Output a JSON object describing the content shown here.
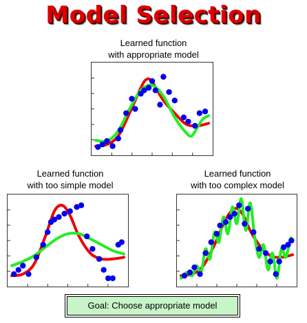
{
  "title": "Model Selection",
  "colors": {
    "title": "#dd0000",
    "points": "#0000ee",
    "truth": "#ee0000",
    "learned": "#22ee22",
    "goal_box": "#c8f5c8"
  },
  "panels": {
    "appropriate": {
      "caption_line1": "Learned function",
      "caption_line2": "with appropriate model",
      "chart_data": {
        "type": "scatter",
        "points": [
          [
            0.02,
            0.05
          ],
          [
            0.06,
            0.08
          ],
          [
            0.1,
            0.12
          ],
          [
            0.15,
            0.06
          ],
          [
            0.2,
            0.15
          ],
          [
            0.22,
            0.25
          ],
          [
            0.27,
            0.45
          ],
          [
            0.32,
            0.62
          ],
          [
            0.35,
            0.5
          ],
          [
            0.4,
            0.68
          ],
          [
            0.43,
            0.72
          ],
          [
            0.47,
            0.75
          ],
          [
            0.5,
            0.83
          ],
          [
            0.53,
            0.72
          ],
          [
            0.57,
            0.55
          ],
          [
            0.6,
            0.88
          ],
          [
            0.65,
            0.7
          ],
          [
            0.7,
            0.6
          ],
          [
            0.78,
            0.4
          ],
          [
            0.82,
            0.35
          ],
          [
            0.88,
            0.3
          ],
          [
            0.92,
            0.45
          ],
          [
            0.97,
            0.47
          ]
        ],
        "truth": [
          [
            0,
            0.06
          ],
          [
            0.1,
            0.08
          ],
          [
            0.2,
            0.18
          ],
          [
            0.3,
            0.45
          ],
          [
            0.4,
            0.75
          ],
          [
            0.45,
            0.85
          ],
          [
            0.5,
            0.82
          ],
          [
            0.6,
            0.6
          ],
          [
            0.7,
            0.45
          ],
          [
            0.8,
            0.32
          ],
          [
            0.9,
            0.3
          ],
          [
            1,
            0.33
          ]
        ],
        "learned": [
          [
            0,
            0.13
          ],
          [
            0.1,
            0.12
          ],
          [
            0.2,
            0.24
          ],
          [
            0.3,
            0.5
          ],
          [
            0.4,
            0.72
          ],
          [
            0.5,
            0.78
          ],
          [
            0.6,
            0.65
          ],
          [
            0.7,
            0.4
          ],
          [
            0.8,
            0.22
          ],
          [
            0.85,
            0.18
          ],
          [
            0.9,
            0.28
          ],
          [
            0.95,
            0.38
          ],
          [
            1,
            0.42
          ]
        ]
      }
    },
    "too_simple": {
      "caption_line1": "Learned function",
      "caption_line2": "with too simple model",
      "chart_data": {
        "type": "scatter",
        "points": [
          [
            0.02,
            0.1
          ],
          [
            0.06,
            0.15
          ],
          [
            0.1,
            0.2
          ],
          [
            0.15,
            0.1
          ],
          [
            0.22,
            0.3
          ],
          [
            0.28,
            0.45
          ],
          [
            0.32,
            0.6
          ],
          [
            0.35,
            0.72
          ],
          [
            0.38,
            0.75
          ],
          [
            0.42,
            0.78
          ],
          [
            0.47,
            0.82
          ],
          [
            0.52,
            0.85
          ],
          [
            0.58,
            0.9
          ],
          [
            0.62,
            0.92
          ],
          [
            0.67,
            0.55
          ],
          [
            0.72,
            0.4
          ],
          [
            0.78,
            0.28
          ],
          [
            0.82,
            0.15
          ],
          [
            0.86,
            0.05
          ],
          [
            0.9,
            0.05
          ],
          [
            0.95,
            0.45
          ],
          [
            0.98,
            0.48
          ]
        ],
        "truth": [
          [
            0,
            0.08
          ],
          [
            0.1,
            0.1
          ],
          [
            0.2,
            0.22
          ],
          [
            0.3,
            0.55
          ],
          [
            0.38,
            0.85
          ],
          [
            0.45,
            0.92
          ],
          [
            0.52,
            0.8
          ],
          [
            0.6,
            0.55
          ],
          [
            0.7,
            0.35
          ],
          [
            0.8,
            0.28
          ],
          [
            0.9,
            0.28
          ],
          [
            1,
            0.3
          ]
        ],
        "learned": [
          [
            0,
            0.2
          ],
          [
            0.1,
            0.25
          ],
          [
            0.2,
            0.32
          ],
          [
            0.3,
            0.42
          ],
          [
            0.4,
            0.52
          ],
          [
            0.5,
            0.58
          ],
          [
            0.6,
            0.58
          ],
          [
            0.7,
            0.52
          ],
          [
            0.8,
            0.45
          ],
          [
            0.9,
            0.38
          ],
          [
            1,
            0.34
          ]
        ]
      }
    },
    "too_complex": {
      "caption_line1": "Learned function",
      "caption_line2": "with too complex model",
      "chart_data": {
        "type": "scatter",
        "points": [
          [
            0.03,
            0.08
          ],
          [
            0.08,
            0.12
          ],
          [
            0.12,
            0.18
          ],
          [
            0.17,
            0.1
          ],
          [
            0.22,
            0.35
          ],
          [
            0.27,
            0.48
          ],
          [
            0.32,
            0.58
          ],
          [
            0.35,
            0.68
          ],
          [
            0.4,
            0.72
          ],
          [
            0.44,
            0.78
          ],
          [
            0.48,
            0.82
          ],
          [
            0.52,
            0.92
          ],
          [
            0.57,
            0.7
          ],
          [
            0.6,
            0.88
          ],
          [
            0.65,
            0.6
          ],
          [
            0.7,
            0.4
          ],
          [
            0.76,
            0.35
          ],
          [
            0.8,
            0.25
          ],
          [
            0.85,
            0.1
          ],
          [
            0.88,
            0.25
          ],
          [
            0.92,
            0.42
          ],
          [
            0.96,
            0.45
          ],
          [
            0.99,
            0.5
          ]
        ],
        "truth": [
          [
            0,
            0.08
          ],
          [
            0.1,
            0.1
          ],
          [
            0.2,
            0.2
          ],
          [
            0.3,
            0.45
          ],
          [
            0.4,
            0.75
          ],
          [
            0.48,
            0.88
          ],
          [
            0.55,
            0.82
          ],
          [
            0.62,
            0.62
          ],
          [
            0.7,
            0.45
          ],
          [
            0.8,
            0.32
          ],
          [
            0.9,
            0.3
          ],
          [
            1,
            0.33
          ]
        ],
        "learned": [
          [
            0,
            0.05
          ],
          [
            0.05,
            0.12
          ],
          [
            0.1,
            0.08
          ],
          [
            0.14,
            0.2
          ],
          [
            0.18,
            0.12
          ],
          [
            0.22,
            0.4
          ],
          [
            0.26,
            0.28
          ],
          [
            0.3,
            0.6
          ],
          [
            0.34,
            0.48
          ],
          [
            0.38,
            0.78
          ],
          [
            0.42,
            0.58
          ],
          [
            0.46,
            0.9
          ],
          [
            0.5,
            0.7
          ],
          [
            0.54,
            1.0
          ],
          [
            0.58,
            0.62
          ],
          [
            0.62,
            0.95
          ],
          [
            0.66,
            0.55
          ],
          [
            0.7,
            0.3
          ],
          [
            0.74,
            0.45
          ],
          [
            0.78,
            0.15
          ],
          [
            0.82,
            0.35
          ],
          [
            0.86,
            0.05
          ],
          [
            0.9,
            0.4
          ],
          [
            0.94,
            0.3
          ],
          [
            0.98,
            0.52
          ],
          [
            1,
            0.5
          ]
        ]
      }
    }
  },
  "goal_text": "Goal: Choose appropriate model"
}
